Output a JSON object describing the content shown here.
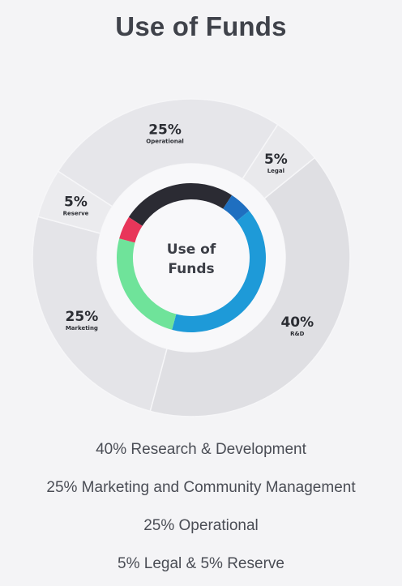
{
  "title": "Use of Funds",
  "chart_data": {
    "type": "pie",
    "center_label": [
      "Use of",
      "Funds"
    ],
    "slices": [
      {
        "label": "Operational",
        "value": 25,
        "display": "25%",
        "color": "#2b2b33"
      },
      {
        "label": "Legal",
        "value": 5,
        "display": "5%",
        "color": "#1f6fc0"
      },
      {
        "label": "R&D",
        "value": 40,
        "display": "40%",
        "color": "#1e9ad8"
      },
      {
        "label": "Marketing",
        "value": 25,
        "display": "25%",
        "color": "#6fe39a"
      },
      {
        "label": "Reserve",
        "value": 5,
        "display": "5%",
        "color": "#e8365a"
      }
    ]
  },
  "breakdown": [
    "40% Research & Development",
    "25% Marketing and Community Management",
    "25% Operational",
    "5% Legal & 5% Reserve"
  ]
}
